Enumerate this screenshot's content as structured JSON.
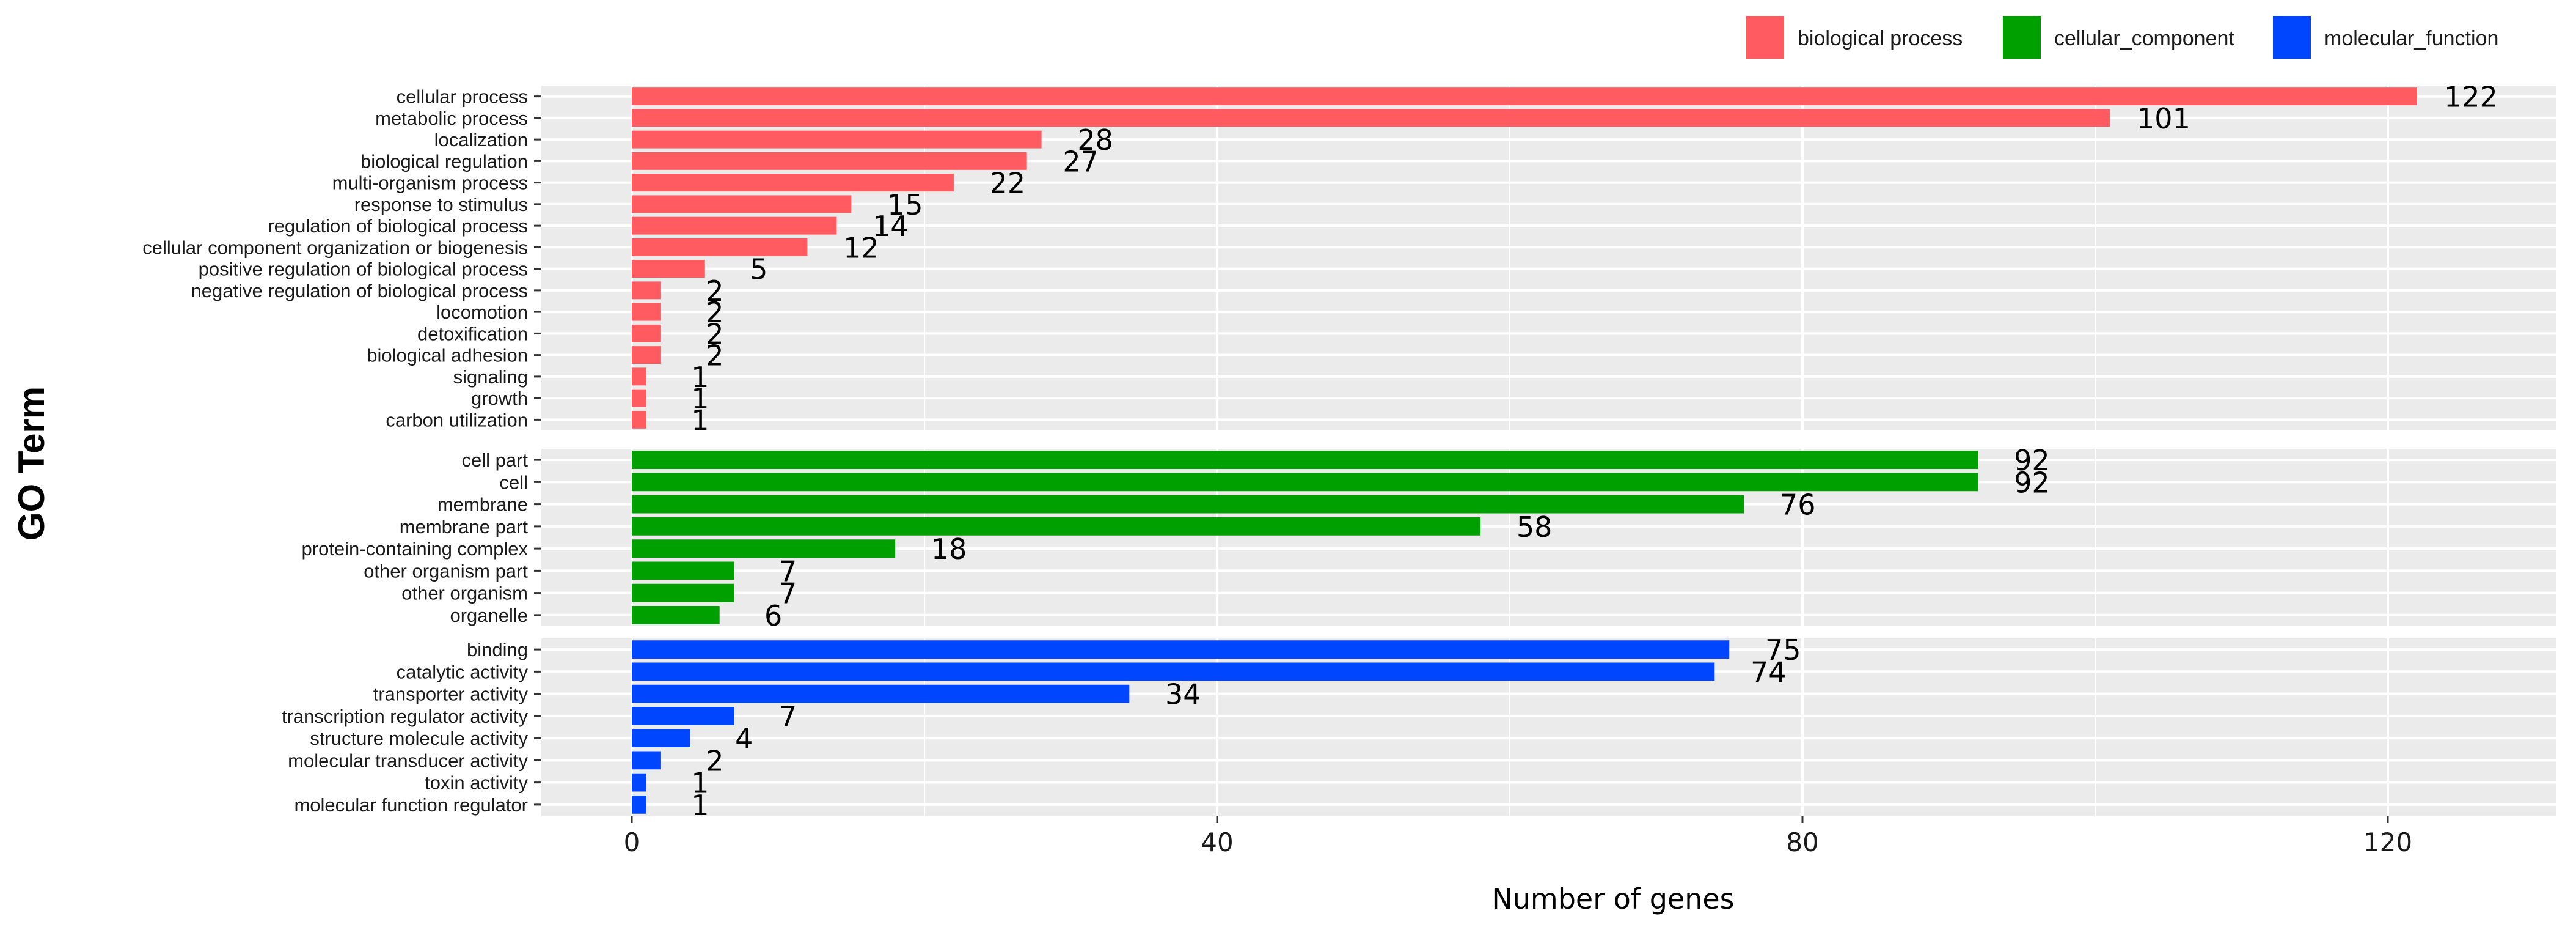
{
  "chart_data": {
    "type": "bar",
    "orientation": "horizontal",
    "xlabel": "Number of genes",
    "ylabel": "GO Term",
    "xlim": [
      -6.3,
      131
    ],
    "xticks": [
      0,
      40,
      80,
      120
    ],
    "grid": true,
    "legend_position": "top-right",
    "series": [
      {
        "name": "biological process",
        "color": "#ff5b61",
        "categories": [
          "cellular process",
          "metabolic process",
          "localization",
          "biological regulation",
          "multi-organism process",
          "response to stimulus",
          "regulation of biological process",
          "cellular component organization or biogenesis",
          "positive regulation of biological process",
          "negative regulation of biological process",
          "locomotion",
          "detoxification",
          "biological adhesion",
          "signaling",
          "growth",
          "carbon utilization"
        ],
        "values": [
          122,
          101,
          28,
          27,
          22,
          15,
          14,
          12,
          5,
          2,
          2,
          2,
          2,
          1,
          1,
          1
        ]
      },
      {
        "name": "cellular_component",
        "color": "#00a000",
        "categories": [
          "cell part",
          "cell",
          "membrane",
          "membrane part",
          "protein-containing complex",
          "other organism part",
          "other organism",
          "organelle"
        ],
        "values": [
          92,
          92,
          76,
          58,
          18,
          7,
          7,
          6
        ]
      },
      {
        "name": "molecular_function",
        "color": "#0046ff",
        "categories": [
          "binding",
          "catalytic activity",
          "transporter activity",
          "transcription regulator activity",
          "structure molecule activity",
          "molecular transducer activity",
          "toxin activity",
          "molecular function regulator"
        ],
        "values": [
          75,
          74,
          34,
          7,
          4,
          2,
          1,
          1
        ]
      }
    ]
  }
}
